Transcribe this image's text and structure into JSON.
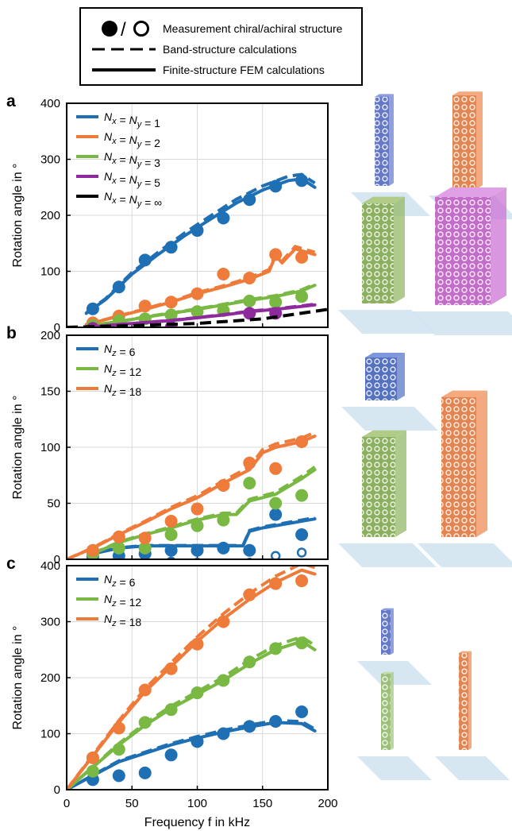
{
  "figure_legend": {
    "items": [
      {
        "marker": "filled-circle/open-circle",
        "label": "Measurement chiral/achiral structure"
      },
      {
        "marker": "dashed-line",
        "label": "Band-structure calculations"
      },
      {
        "marker": "solid-line",
        "label": "Finite-structure FEM calculations"
      }
    ]
  },
  "chart_data": [
    {
      "panel": "a",
      "type": "line",
      "ylabel": "Rotation angle in °",
      "xlabel": "",
      "xlim": [
        0,
        200
      ],
      "ylim": [
        0,
        400
      ],
      "yticks": [
        "0",
        "100",
        "200",
        "300",
        "400"
      ],
      "legend_position": "top-left",
      "series": [
        {
          "name": "N_x = N_y = 1",
          "color": "#1f6fb4",
          "meas_x": [
            20,
            40,
            60,
            80,
            100,
            120,
            140,
            160,
            180
          ],
          "meas_y": [
            33,
            72,
            120,
            143,
            173,
            195,
            228,
            252,
            262
          ],
          "calc_x": [
            15,
            30,
            50,
            70,
            90,
            110,
            130,
            150,
            170,
            180,
            190
          ],
          "calc_y": [
            25,
            50,
            95,
            130,
            163,
            193,
            222,
            245,
            262,
            265,
            250
          ]
        },
        {
          "name": "N_x = N_y = 2",
          "color": "#ef7b3a",
          "meas_x": [
            20,
            40,
            60,
            80,
            100,
            120,
            140,
            160,
            180
          ],
          "meas_y": [
            8,
            20,
            38,
            45,
            60,
            95,
            88,
            130,
            125
          ],
          "calc_x": [
            15,
            40,
            60,
            80,
            100,
            120,
            140,
            155,
            160,
            165,
            175,
            190
          ],
          "calc_y": [
            5,
            20,
            32,
            45,
            60,
            72,
            86,
            100,
            128,
            115,
            140,
            130
          ]
        },
        {
          "name": "N_x = N_y = 3",
          "color": "#79b842",
          "meas_x": [
            20,
            40,
            60,
            80,
            100,
            120,
            140,
            160,
            180
          ],
          "meas_y": [
            3,
            12,
            15,
            22,
            28,
            30,
            47,
            45,
            55
          ],
          "calc_x": [
            15,
            40,
            60,
            80,
            100,
            120,
            140,
            160,
            180,
            190
          ],
          "calc_y": [
            2,
            10,
            18,
            25,
            32,
            40,
            48,
            55,
            65,
            75
          ]
        },
        {
          "name": "N_x = N_y = 5",
          "color": "#8e2b9c",
          "meas_x": [
            20,
            80,
            140,
            160
          ],
          "meas_y": [
            -2,
            0,
            25,
            25
          ],
          "calc_x": [
            15,
            40,
            80,
            100,
            120,
            140,
            160,
            190
          ],
          "calc_y": [
            0,
            5,
            12,
            17,
            22,
            28,
            32,
            40
          ]
        },
        {
          "name": "N_x = N_y = ∞",
          "color": "#000000",
          "meas_x": [],
          "meas_y": [],
          "calc_x": [
            0,
            50,
            100,
            150,
            200
          ],
          "calc_y": [
            0,
            3,
            7,
            15,
            32
          ]
        }
      ]
    },
    {
      "panel": "b",
      "type": "line",
      "ylabel": "Rotation angle in °",
      "xlabel": "",
      "xlim": [
        0,
        200
      ],
      "ylim": [
        0,
        200
      ],
      "yticks": [
        "0",
        "50",
        "100",
        "150",
        "200"
      ],
      "legend_position": "top-left",
      "series": [
        {
          "name": "N_z = 6",
          "color": "#1f6fb4",
          "meas_x": [
            20,
            40,
            60,
            80,
            100,
            120,
            140,
            160,
            180
          ],
          "meas_y": [
            2,
            3,
            5,
            8,
            8,
            10,
            8,
            40,
            22
          ],
          "achiral_x": [
            40,
            60,
            80,
            100,
            120,
            140,
            160,
            180
          ],
          "achiral_y": [
            -3,
            -2,
            -2,
            -3,
            -4,
            -3,
            3,
            6
          ],
          "calc_x": [
            20,
            40,
            60,
            80,
            100,
            120,
            135,
            140,
            150,
            170,
            190
          ],
          "calc_y": [
            5,
            10,
            12,
            12,
            12,
            12,
            12,
            25,
            28,
            32,
            36
          ]
        },
        {
          "name": "N_z = 12",
          "color": "#79b842",
          "meas_x": [
            20,
            40,
            60,
            80,
            100,
            120,
            140,
            160,
            180
          ],
          "meas_y": [
            5,
            10,
            10,
            22,
            30,
            35,
            68,
            50,
            57
          ],
          "calc_x": [
            20,
            40,
            60,
            80,
            100,
            120,
            130,
            140,
            160,
            180,
            190
          ],
          "calc_y": [
            5,
            15,
            22,
            28,
            35,
            40,
            40,
            52,
            58,
            72,
            80
          ]
        },
        {
          "name": "N_z = 18",
          "color": "#ef7b3a",
          "meas_x": [
            20,
            40,
            60,
            80,
            100,
            120,
            140,
            160,
            180
          ],
          "meas_y": [
            8,
            20,
            19,
            34,
            45,
            66,
            86,
            81,
            105
          ],
          "calc_x": [
            0,
            20,
            40,
            60,
            80,
            100,
            120,
            140,
            150,
            160,
            180,
            190
          ],
          "calc_y": [
            0,
            10,
            22,
            33,
            45,
            55,
            68,
            80,
            95,
            100,
            105,
            110
          ]
        }
      ]
    },
    {
      "panel": "c",
      "type": "line",
      "ylabel": "Rotation angle in °",
      "xlabel": "Frequency f in kHz",
      "xlim": [
        0,
        200
      ],
      "ylim": [
        0,
        400
      ],
      "xticks": [
        "0",
        "50",
        "100",
        "150",
        "200"
      ],
      "yticks": [
        "0",
        "100",
        "200",
        "300",
        "400"
      ],
      "legend_position": "top-left",
      "series": [
        {
          "name": "N_z = 6",
          "color": "#1f6fb4",
          "meas_x": [
            20,
            40,
            60,
            80,
            100,
            120,
            140,
            160,
            180
          ],
          "meas_y": [
            18,
            25,
            30,
            62,
            86,
            100,
            113,
            122,
            139
          ],
          "calc_x": [
            0,
            20,
            40,
            60,
            80,
            100,
            120,
            140,
            160,
            180,
            190
          ],
          "calc_y": [
            0,
            25,
            50,
            65,
            80,
            92,
            103,
            112,
            120,
            118,
            105
          ]
        },
        {
          "name": "N_z = 12",
          "color": "#79b842",
          "meas_x": [
            20,
            40,
            60,
            80,
            100,
            120,
            140,
            160,
            180
          ],
          "meas_y": [
            33,
            72,
            120,
            143,
            173,
            195,
            228,
            252,
            262
          ],
          "calc_x": [
            0,
            20,
            40,
            60,
            80,
            100,
            120,
            140,
            160,
            180,
            190
          ],
          "calc_y": [
            0,
            40,
            80,
            115,
            145,
            170,
            195,
            225,
            250,
            265,
            250
          ]
        },
        {
          "name": "N_z = 18",
          "color": "#ef7b3a",
          "meas_x": [
            20,
            40,
            60,
            80,
            100,
            120,
            140,
            160,
            180
          ],
          "meas_y": [
            57,
            110,
            178,
            216,
            260,
            300,
            348,
            368,
            373
          ],
          "calc_x": [
            0,
            20,
            40,
            60,
            80,
            100,
            120,
            140,
            160,
            180,
            190
          ],
          "calc_y": [
            0,
            60,
            120,
            175,
            220,
            265,
            305,
            340,
            370,
            392,
            385
          ]
        }
      ]
    }
  ],
  "panels": {
    "a": "a",
    "b": "b",
    "c": "c"
  }
}
